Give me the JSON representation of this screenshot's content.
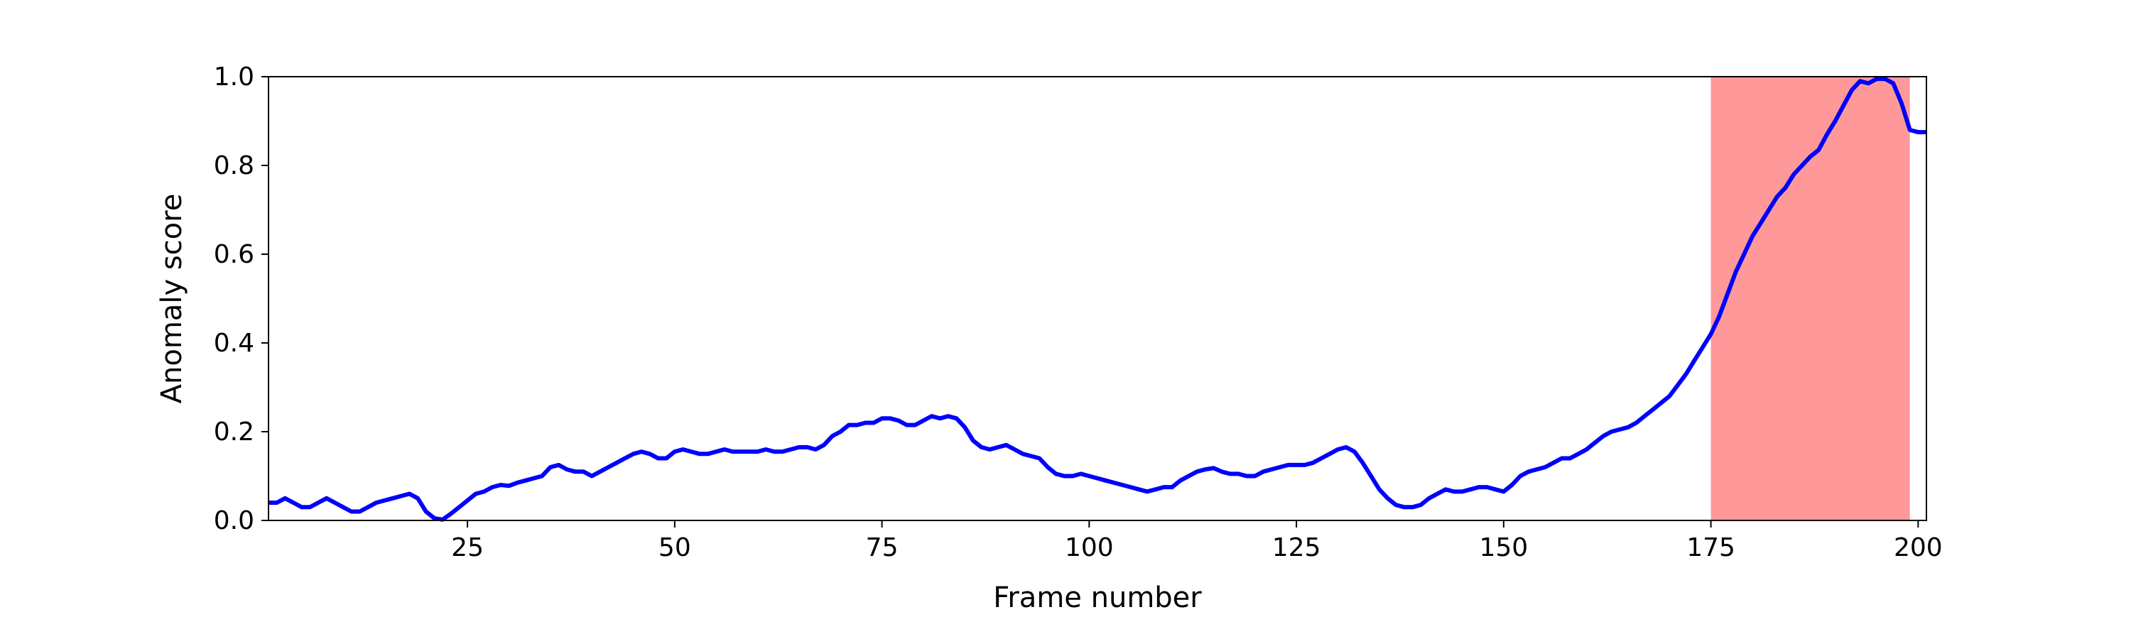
{
  "chart_data": {
    "type": "line",
    "xlabel": "Frame number",
    "ylabel": "Anomaly score",
    "xlim": [
      1,
      201
    ],
    "ylim": [
      0.0,
      1.0
    ],
    "xticks": [
      25,
      50,
      75,
      100,
      125,
      150,
      175,
      200
    ],
    "yticks": [
      0.0,
      0.2,
      0.4,
      0.6,
      0.8,
      1.0
    ],
    "xtick_labels": [
      "25",
      "50",
      "75",
      "100",
      "125",
      "150",
      "175",
      "200"
    ],
    "ytick_labels": [
      "0.0",
      "0.2",
      "0.4",
      "0.6",
      "0.8",
      "1.0"
    ],
    "grid": false,
    "highlight_region": {
      "x_start": 175,
      "x_end": 199,
      "color": "#ff9999"
    },
    "series": [
      {
        "color": "#0000ff",
        "points": [
          [
            1,
            0.04
          ],
          [
            2,
            0.04
          ],
          [
            3,
            0.05
          ],
          [
            4,
            0.04
          ],
          [
            5,
            0.03
          ],
          [
            6,
            0.03
          ],
          [
            7,
            0.04
          ],
          [
            8,
            0.05
          ],
          [
            9,
            0.04
          ],
          [
            10,
            0.03
          ],
          [
            11,
            0.02
          ],
          [
            12,
            0.02
          ],
          [
            13,
            0.03
          ],
          [
            14,
            0.04
          ],
          [
            15,
            0.045
          ],
          [
            16,
            0.05
          ],
          [
            17,
            0.055
          ],
          [
            18,
            0.06
          ],
          [
            19,
            0.05
          ],
          [
            20,
            0.02
          ],
          [
            21,
            0.005
          ],
          [
            22,
            0.002
          ],
          [
            23,
            0.015
          ],
          [
            24,
            0.03
          ],
          [
            25,
            0.045
          ],
          [
            26,
            0.06
          ],
          [
            27,
            0.065
          ],
          [
            28,
            0.075
          ],
          [
            29,
            0.08
          ],
          [
            30,
            0.078
          ],
          [
            31,
            0.085
          ],
          [
            32,
            0.09
          ],
          [
            33,
            0.095
          ],
          [
            34,
            0.1
          ],
          [
            35,
            0.12
          ],
          [
            36,
            0.125
          ],
          [
            37,
            0.115
          ],
          [
            38,
            0.11
          ],
          [
            39,
            0.11
          ],
          [
            40,
            0.1
          ],
          [
            41,
            0.11
          ],
          [
            42,
            0.12
          ],
          [
            43,
            0.13
          ],
          [
            44,
            0.14
          ],
          [
            45,
            0.15
          ],
          [
            46,
            0.155
          ],
          [
            47,
            0.15
          ],
          [
            48,
            0.14
          ],
          [
            49,
            0.14
          ],
          [
            50,
            0.155
          ],
          [
            51,
            0.16
          ],
          [
            52,
            0.155
          ],
          [
            53,
            0.15
          ],
          [
            54,
            0.15
          ],
          [
            55,
            0.155
          ],
          [
            56,
            0.16
          ],
          [
            57,
            0.155
          ],
          [
            58,
            0.155
          ],
          [
            59,
            0.155
          ],
          [
            60,
            0.155
          ],
          [
            61,
            0.16
          ],
          [
            62,
            0.155
          ],
          [
            63,
            0.155
          ],
          [
            64,
            0.16
          ],
          [
            65,
            0.165
          ],
          [
            66,
            0.165
          ],
          [
            67,
            0.16
          ],
          [
            68,
            0.17
          ],
          [
            69,
            0.19
          ],
          [
            70,
            0.2
          ],
          [
            71,
            0.215
          ],
          [
            72,
            0.215
          ],
          [
            73,
            0.22
          ],
          [
            74,
            0.22
          ],
          [
            75,
            0.23
          ],
          [
            76,
            0.23
          ],
          [
            77,
            0.225
          ],
          [
            78,
            0.215
          ],
          [
            79,
            0.215
          ],
          [
            80,
            0.225
          ],
          [
            81,
            0.235
          ],
          [
            82,
            0.23
          ],
          [
            83,
            0.235
          ],
          [
            84,
            0.23
          ],
          [
            85,
            0.21
          ],
          [
            86,
            0.18
          ],
          [
            87,
            0.165
          ],
          [
            88,
            0.16
          ],
          [
            89,
            0.165
          ],
          [
            90,
            0.17
          ],
          [
            91,
            0.16
          ],
          [
            92,
            0.15
          ],
          [
            93,
            0.145
          ],
          [
            94,
            0.14
          ],
          [
            95,
            0.12
          ],
          [
            96,
            0.105
          ],
          [
            97,
            0.1
          ],
          [
            98,
            0.1
          ],
          [
            99,
            0.105
          ],
          [
            100,
            0.1
          ],
          [
            101,
            0.095
          ],
          [
            102,
            0.09
          ],
          [
            103,
            0.085
          ],
          [
            104,
            0.08
          ],
          [
            105,
            0.075
          ],
          [
            106,
            0.07
          ],
          [
            107,
            0.065
          ],
          [
            108,
            0.07
          ],
          [
            109,
            0.075
          ],
          [
            110,
            0.075
          ],
          [
            111,
            0.09
          ],
          [
            112,
            0.1
          ],
          [
            113,
            0.11
          ],
          [
            114,
            0.115
          ],
          [
            115,
            0.118
          ],
          [
            116,
            0.11
          ],
          [
            117,
            0.105
          ],
          [
            118,
            0.105
          ],
          [
            119,
            0.1
          ],
          [
            120,
            0.1
          ],
          [
            121,
            0.11
          ],
          [
            122,
            0.115
          ],
          [
            123,
            0.12
          ],
          [
            124,
            0.125
          ],
          [
            125,
            0.125
          ],
          [
            126,
            0.125
          ],
          [
            127,
            0.13
          ],
          [
            128,
            0.14
          ],
          [
            129,
            0.15
          ],
          [
            130,
            0.16
          ],
          [
            131,
            0.165
          ],
          [
            132,
            0.155
          ],
          [
            133,
            0.13
          ],
          [
            134,
            0.1
          ],
          [
            135,
            0.07
          ],
          [
            136,
            0.05
          ],
          [
            137,
            0.035
          ],
          [
            138,
            0.03
          ],
          [
            139,
            0.03
          ],
          [
            140,
            0.035
          ],
          [
            141,
            0.05
          ],
          [
            142,
            0.06
          ],
          [
            143,
            0.07
          ],
          [
            144,
            0.065
          ],
          [
            145,
            0.065
          ],
          [
            146,
            0.07
          ],
          [
            147,
            0.075
          ],
          [
            148,
            0.075
          ],
          [
            149,
            0.07
          ],
          [
            150,
            0.065
          ],
          [
            151,
            0.08
          ],
          [
            152,
            0.1
          ],
          [
            153,
            0.11
          ],
          [
            154,
            0.115
          ],
          [
            155,
            0.12
          ],
          [
            156,
            0.13
          ],
          [
            157,
            0.14
          ],
          [
            158,
            0.14
          ],
          [
            159,
            0.15
          ],
          [
            160,
            0.16
          ],
          [
            161,
            0.175
          ],
          [
            162,
            0.19
          ],
          [
            163,
            0.2
          ],
          [
            164,
            0.205
          ],
          [
            165,
            0.21
          ],
          [
            166,
            0.22
          ],
          [
            167,
            0.235
          ],
          [
            168,
            0.25
          ],
          [
            169,
            0.265
          ],
          [
            170,
            0.28
          ],
          [
            171,
            0.305
          ],
          [
            172,
            0.33
          ],
          [
            173,
            0.36
          ],
          [
            174,
            0.39
          ],
          [
            175,
            0.42
          ],
          [
            176,
            0.46
          ],
          [
            177,
            0.51
          ],
          [
            178,
            0.56
          ],
          [
            179,
            0.6
          ],
          [
            180,
            0.64
          ],
          [
            181,
            0.67
          ],
          [
            182,
            0.7
          ],
          [
            183,
            0.73
          ],
          [
            184,
            0.75
          ],
          [
            185,
            0.78
          ],
          [
            186,
            0.8
          ],
          [
            187,
            0.82
          ],
          [
            188,
            0.835
          ],
          [
            189,
            0.87
          ],
          [
            190,
            0.9
          ],
          [
            191,
            0.935
          ],
          [
            192,
            0.97
          ],
          [
            193,
            0.99
          ],
          [
            194,
            0.985
          ],
          [
            195,
            0.995
          ],
          [
            196,
            0.995
          ],
          [
            197,
            0.985
          ],
          [
            198,
            0.94
          ],
          [
            199,
            0.88
          ],
          [
            200,
            0.875
          ],
          [
            201,
            0.875
          ]
        ]
      }
    ]
  }
}
